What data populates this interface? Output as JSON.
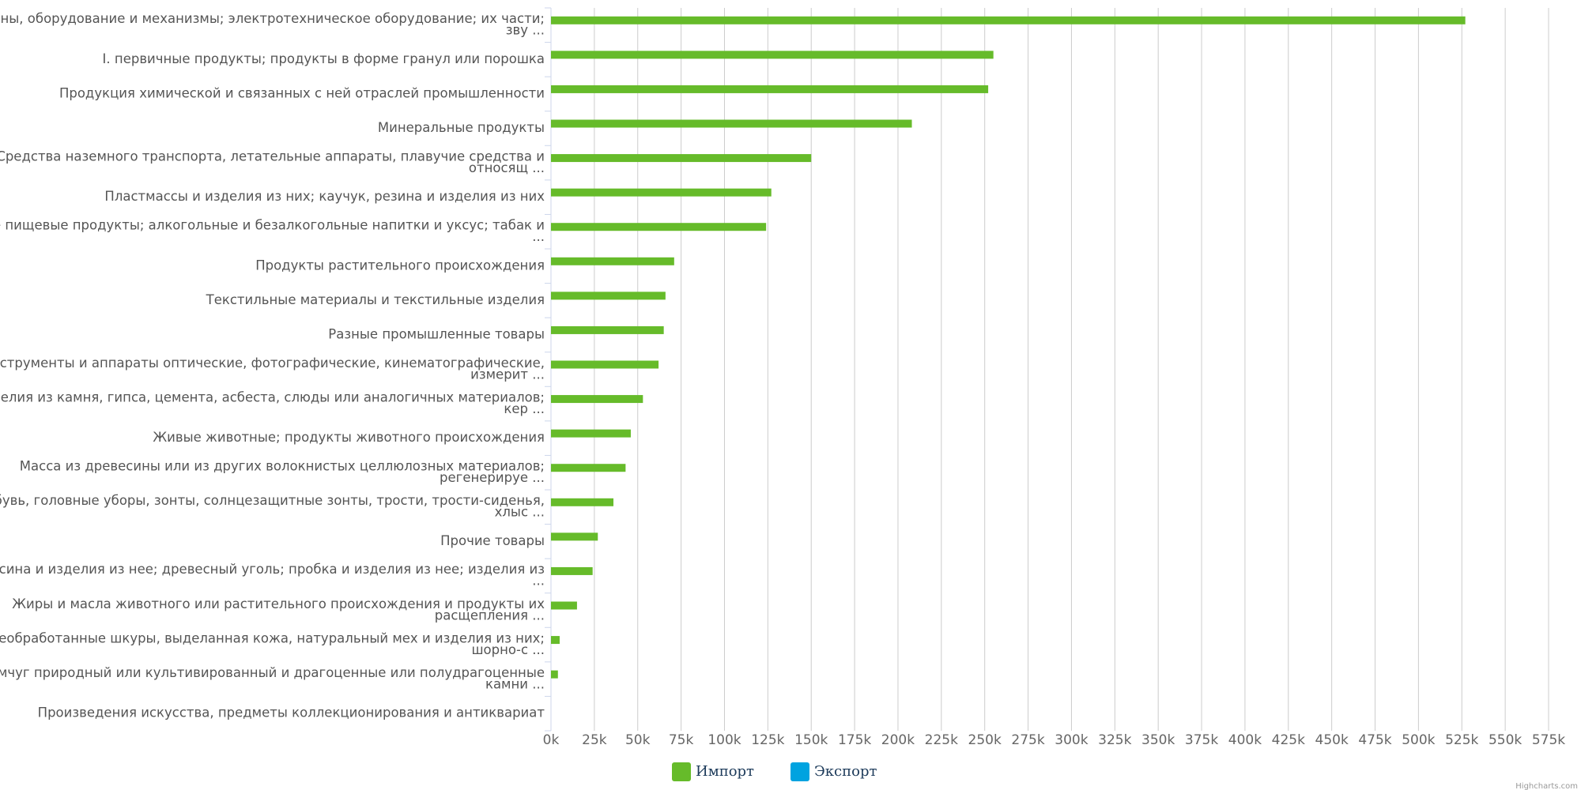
{
  "chart_data": {
    "type": "bar",
    "categories": [
      [
        "ины, оборудование и механизмы; электротехническое оборудование; их части;",
        "зву ..."
      ],
      [
        "I. первичные продукты; продукты в форме гранул или порошка"
      ],
      [
        "Продукция химической и связанных с ней отраслей промышленности"
      ],
      [
        "Минеральные продукты"
      ],
      [
        "Средства наземного транспорта, летательные аппараты, плавучие средства и",
        "относящ ..."
      ],
      [
        "Пластмассы и изделия из них; каучук, резина и изделия из них"
      ],
      [
        "е пищевые продукты; алкогольные и безалкогольные напитки и уксус; табак и",
        "..."
      ],
      [
        "Продукты растительного происхождения"
      ],
      [
        "Текстильные материалы и текстильные изделия"
      ],
      [
        "Разные промышленные товары"
      ],
      [
        "нструменты и аппараты оптические, фотографические, кинематографические,",
        "измерит ..."
      ],
      [
        "делия из камня, гипса, цемента, асбеста, слюды или аналогичных материалов;",
        "кер ..."
      ],
      [
        "Живые животные; продукты животного происхождения"
      ],
      [
        "Масса из древесины или из других волокнистых целлюлозных материалов;",
        "регенерируе ..."
      ],
      [
        "бувь, головные уборы, зонты, солнцезащитные зонты, трости, трости-сиденья,",
        "хлыс ..."
      ],
      [
        "Прочие товары"
      ],
      [
        "есина и изделия из нее; древесный уголь; пробка и изделия из нее; изделия из",
        "..."
      ],
      [
        "Жиры и масла животного или растительного происхождения и продукты их",
        "расщепления ..."
      ],
      [
        "Необработанные шкуры, выделанная кожа, натуральный мех и изделия из них;",
        "шорно-с ..."
      ],
      [
        "емчуг природный или культивированный и драгоценные или полудрагоценные",
        "камни ..."
      ],
      [
        "Произведения искусства, предметы коллекционирования и антиквариат"
      ]
    ],
    "series": [
      {
        "name": "Импорт",
        "color": "#66bb2a",
        "values": [
          527000,
          255000,
          252000,
          208000,
          150000,
          127000,
          124000,
          71000,
          66000,
          65000,
          62000,
          53000,
          46000,
          43000,
          36000,
          27000,
          24000,
          15000,
          5000,
          4000,
          0
        ]
      },
      {
        "name": "Экспорт",
        "color": "#00a3e0",
        "values": [
          null,
          null,
          null,
          null,
          null,
          null,
          null,
          null,
          null,
          null,
          null,
          null,
          null,
          null,
          null,
          null,
          null,
          null,
          null,
          null,
          null
        ]
      }
    ],
    "xlim": [
      0,
      575000
    ],
    "xticks": [
      {
        "value": 0,
        "label": "0k"
      },
      {
        "value": 25000,
        "label": "25k"
      },
      {
        "value": 50000,
        "label": "50k"
      },
      {
        "value": 75000,
        "label": "75k"
      },
      {
        "value": 100000,
        "label": "100k"
      },
      {
        "value": 125000,
        "label": "125k"
      },
      {
        "value": 150000,
        "label": "150k"
      },
      {
        "value": 175000,
        "label": "175k"
      },
      {
        "value": 200000,
        "label": "200k"
      },
      {
        "value": 225000,
        "label": "225k"
      },
      {
        "value": 250000,
        "label": "250k"
      },
      {
        "value": 275000,
        "label": "275k"
      },
      {
        "value": 300000,
        "label": "300k"
      },
      {
        "value": 325000,
        "label": "325k"
      },
      {
        "value": 350000,
        "label": "350k"
      },
      {
        "value": 375000,
        "label": "375k"
      },
      {
        "value": 400000,
        "label": "400k"
      },
      {
        "value": 425000,
        "label": "425k"
      },
      {
        "value": 450000,
        "label": "450k"
      },
      {
        "value": 475000,
        "label": "475k"
      },
      {
        "value": 500000,
        "label": "500k"
      },
      {
        "value": 525000,
        "label": "525k"
      },
      {
        "value": 550000,
        "label": "550k"
      },
      {
        "value": 575000,
        "label": "575k"
      }
    ],
    "grid": true,
    "credits": "Highcharts.com"
  }
}
